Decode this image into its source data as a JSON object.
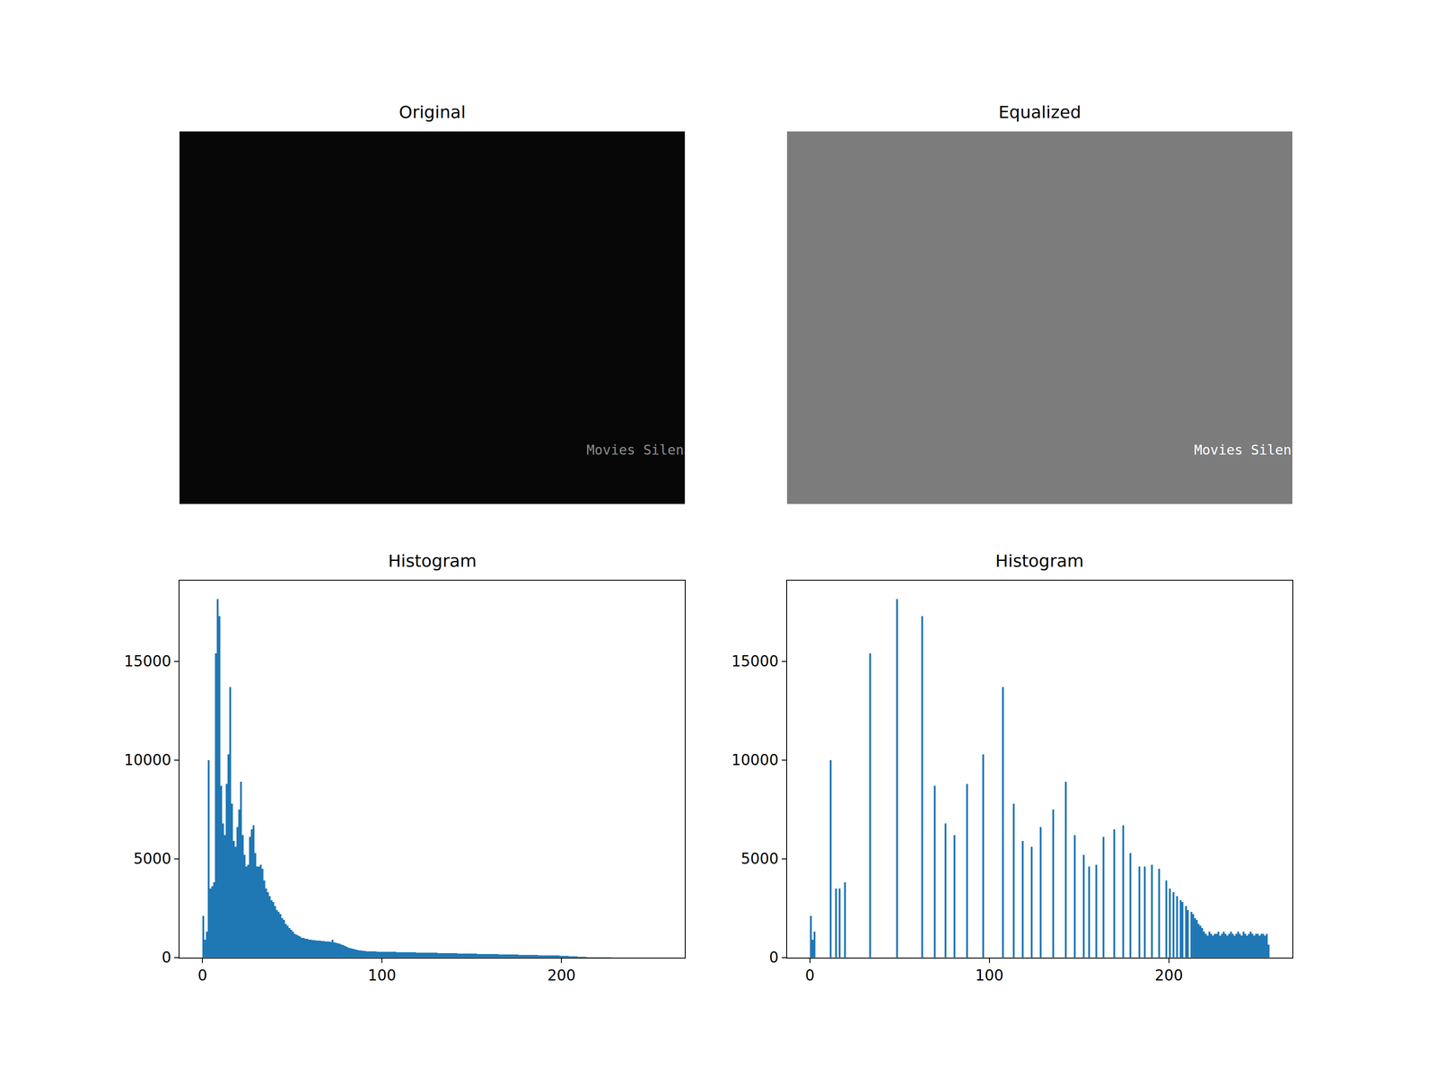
{
  "chart_data": [
    {
      "type": "image",
      "title": "Original",
      "color": "#070707",
      "annotations": [
        "Movies Silen"
      ],
      "tick_labels": false
    },
    {
      "type": "image",
      "title": "Equalized",
      "color": "#7c7c7c",
      "annotations": [
        "Movies Silen"
      ],
      "tick_labels": false
    },
    {
      "type": "histogram",
      "title": "Histogram",
      "color": "#1f77b4",
      "xlim": [
        -12.8,
        268.8
      ],
      "ylim": [
        0,
        19100
      ],
      "xticks": [
        0,
        100,
        200
      ],
      "yticks": [
        0,
        5000,
        10000,
        15000
      ],
      "bins": [
        0,
        1,
        2,
        3,
        4,
        5,
        6,
        7,
        8,
        9,
        10,
        11,
        12,
        13,
        14,
        15,
        16,
        17,
        18,
        19,
        20,
        21,
        22,
        23,
        24,
        25,
        26,
        27,
        28,
        29,
        30,
        31,
        32,
        33,
        34,
        35,
        36,
        37,
        38,
        39,
        40,
        41,
        42,
        43,
        44,
        45,
        46,
        47,
        48,
        49,
        50,
        51,
        52,
        53,
        54,
        55,
        56,
        57,
        58,
        59,
        60,
        61,
        62,
        63,
        64,
        65,
        66,
        67,
        68,
        69,
        70,
        71,
        72,
        73,
        74,
        75,
        76,
        77,
        78,
        79,
        80,
        81,
        82,
        83,
        84,
        85,
        86,
        87,
        88,
        89,
        90,
        91,
        92,
        93,
        94,
        95,
        96,
        97,
        98,
        99,
        100,
        101,
        102,
        103,
        104,
        105,
        106,
        107,
        108,
        109,
        110,
        111,
        112,
        113,
        114,
        115,
        116,
        117,
        118,
        119,
        120,
        121,
        122,
        123,
        124,
        125,
        126,
        127,
        128,
        129,
        130,
        131,
        132,
        133,
        134,
        135,
        136,
        137,
        138,
        139,
        140,
        141,
        142,
        143,
        144,
        145,
        146,
        147,
        148,
        149,
        150,
        151,
        152,
        153,
        154,
        155,
        156,
        157,
        158,
        159,
        160,
        161,
        162,
        163,
        164,
        165,
        166,
        167,
        168,
        169,
        170,
        171,
        172,
        173,
        174,
        175,
        176,
        177,
        178,
        179,
        180,
        181,
        182,
        183,
        184,
        185,
        186,
        187,
        188,
        189,
        190,
        191,
        192,
        193,
        194,
        195,
        196,
        197,
        198,
        199,
        200,
        201,
        202,
        203,
        204,
        205,
        206,
        207,
        208,
        209,
        210,
        211,
        212,
        213,
        214,
        215,
        216,
        217,
        218,
        219,
        220,
        221,
        222,
        223,
        224,
        225,
        226,
        227,
        228,
        229,
        230,
        231,
        232,
        233,
        234,
        235,
        236,
        237,
        238,
        239,
        240,
        241,
        242,
        243,
        244,
        245,
        246,
        247,
        248,
        249,
        250,
        251,
        252,
        253,
        254,
        255,
        256
      ],
      "counts": [
        2100,
        900,
        1300,
        10000,
        3500,
        3600,
        3800,
        15400,
        18150,
        17300,
        8700,
        6800,
        6200,
        8800,
        10300,
        13700,
        7800,
        5900,
        5600,
        6600,
        7500,
        8900,
        6200,
        5200,
        4600,
        4700,
        6100,
        6500,
        6700,
        5300,
        4600,
        4600,
        4700,
        4500,
        3900,
        3500,
        3300,
        3100,
        2900,
        2800,
        2600,
        2400,
        2300,
        2200,
        2000,
        1900,
        1700,
        1600,
        1500,
        1400,
        1300,
        1200,
        1150,
        1100,
        1050,
        1000,
        1000,
        950,
        950,
        900,
        900,
        880,
        870,
        860,
        850,
        850,
        840,
        830,
        820,
        810,
        800,
        780,
        900,
        760,
        740,
        720,
        700,
        660,
        620,
        580,
        540,
        500,
        470,
        440,
        420,
        400,
        380,
        360,
        350,
        340,
        330,
        320,
        315,
        310,
        305,
        300,
        300,
        295,
        295,
        290,
        290,
        288,
        286,
        284,
        282,
        280,
        278,
        276,
        274,
        272,
        270,
        268,
        266,
        264,
        262,
        260,
        258,
        256,
        254,
        252,
        250,
        248,
        246,
        244,
        242,
        240,
        238,
        236,
        234,
        232,
        230,
        228,
        226,
        224,
        222,
        220,
        218,
        216,
        214,
        212,
        210,
        208,
        206,
        204,
        202,
        200,
        198,
        196,
        194,
        192,
        190,
        188,
        186,
        184,
        182,
        180,
        178,
        176,
        174,
        172,
        170,
        168,
        166,
        164,
        162,
        160,
        158,
        156,
        154,
        152,
        150,
        148,
        146,
        144,
        142,
        140,
        138,
        136,
        134,
        132,
        130,
        128,
        126,
        124,
        122,
        120,
        118,
        116,
        114,
        112,
        110,
        108,
        106,
        104,
        102,
        100,
        98,
        96,
        94,
        92,
        90,
        85,
        80,
        75,
        70,
        65,
        60,
        55,
        50,
        45,
        40,
        36,
        32,
        28,
        24,
        20,
        18,
        16,
        14,
        12,
        10,
        9,
        8,
        7,
        6,
        5,
        4,
        3,
        2,
        1,
        0,
        0,
        0,
        0,
        0,
        0,
        0,
        0,
        0,
        0,
        0,
        0,
        0,
        0,
        0,
        0,
        0,
        0,
        0,
        0,
        0,
        0,
        0,
        0,
        0,
        0
      ]
    },
    {
      "type": "histogram",
      "title": "Histogram",
      "color": "#1f77b4",
      "xlim": [
        -12.8,
        268.8
      ],
      "ylim": [
        0,
        19100
      ],
      "xticks": [
        0,
        100,
        200
      ],
      "yticks": [
        0,
        5000,
        10000,
        15000
      ],
      "bins": [
        0,
        1,
        2,
        3,
        4,
        5,
        6,
        7,
        8,
        9,
        10,
        11,
        12,
        13,
        14,
        15,
        16,
        17,
        18,
        19,
        20,
        21,
        22,
        23,
        24,
        25,
        26,
        27,
        28,
        29,
        30,
        31,
        32,
        33,
        34,
        35,
        36,
        37,
        38,
        39,
        40,
        41,
        42,
        43,
        44,
        45,
        46,
        47,
        48,
        49,
        50,
        51,
        52,
        53,
        54,
        55,
        56,
        57,
        58,
        59,
        60,
        61,
        62,
        63,
        64,
        65,
        66,
        67,
        68,
        69,
        70,
        71,
        72,
        73,
        74,
        75,
        76,
        77,
        78,
        79,
        80,
        81,
        82,
        83,
        84,
        85,
        86,
        87,
        88,
        89,
        90,
        91,
        92,
        93,
        94,
        95,
        96,
        97,
        98,
        99,
        100,
        101,
        102,
        103,
        104,
        105,
        106,
        107,
        108,
        109,
        110,
        111,
        112,
        113,
        114,
        115,
        116,
        117,
        118,
        119,
        120,
        121,
        122,
        123,
        124,
        125,
        126,
        127,
        128,
        129,
        130,
        131,
        132,
        133,
        134,
        135,
        136,
        137,
        138,
        139,
        140,
        141,
        142,
        143,
        144,
        145,
        146,
        147,
        148,
        149,
        150,
        151,
        152,
        153,
        154,
        155,
        156,
        157,
        158,
        159,
        160,
        161,
        162,
        163,
        164,
        165,
        166,
        167,
        168,
        169,
        170,
        171,
        172,
        173,
        174,
        175,
        176,
        177,
        178,
        179,
        180,
        181,
        182,
        183,
        184,
        185,
        186,
        187,
        188,
        189,
        190,
        191,
        192,
        193,
        194,
        195,
        196,
        197,
        198,
        199,
        200,
        201,
        202,
        203,
        204,
        205,
        206,
        207,
        208,
        209,
        210,
        211,
        212,
        213,
        214,
        215,
        216,
        217,
        218,
        219,
        220,
        221,
        222,
        223,
        224,
        225,
        226,
        227,
        228,
        229,
        230,
        231,
        232,
        233,
        234,
        235,
        236,
        237,
        238,
        239,
        240,
        241,
        242,
        243,
        244,
        245,
        246,
        247,
        248,
        249,
        250,
        251,
        252,
        253,
        254,
        255,
        256
      ],
      "counts": [
        2100,
        900,
        1300,
        0,
        0,
        0,
        0,
        0,
        0,
        0,
        0,
        10000,
        0,
        0,
        3500,
        0,
        3500,
        0,
        0,
        3800,
        0,
        0,
        0,
        0,
        0,
        0,
        0,
        0,
        0,
        0,
        0,
        0,
        0,
        15400,
        0,
        0,
        0,
        0,
        0,
        0,
        0,
        0,
        0,
        0,
        0,
        0,
        0,
        0,
        18150,
        0,
        0,
        0,
        0,
        0,
        0,
        0,
        0,
        0,
        0,
        0,
        0,
        0,
        17300,
        0,
        0,
        0,
        0,
        0,
        0,
        8700,
        0,
        0,
        0,
        0,
        0,
        6800,
        0,
        0,
        0,
        0,
        6200,
        0,
        0,
        0,
        0,
        0,
        0,
        8800,
        0,
        0,
        0,
        0,
        0,
        0,
        0,
        0,
        10300,
        0,
        0,
        0,
        0,
        0,
        0,
        0,
        0,
        0,
        0,
        13700,
        0,
        0,
        0,
        0,
        0,
        7800,
        0,
        0,
        0,
        0,
        5900,
        0,
        0,
        0,
        0,
        5600,
        0,
        0,
        0,
        0,
        6600,
        0,
        0,
        0,
        0,
        0,
        0,
        7500,
        0,
        0,
        0,
        0,
        0,
        0,
        8900,
        0,
        0,
        0,
        0,
        6200,
        0,
        0,
        0,
        0,
        5200,
        0,
        0,
        4600,
        0,
        0,
        0,
        4700,
        0,
        0,
        0,
        6100,
        0,
        0,
        0,
        0,
        0,
        6500,
        0,
        0,
        0,
        0,
        6700,
        0,
        0,
        0,
        5300,
        0,
        0,
        0,
        0,
        4600,
        0,
        0,
        4600,
        0,
        0,
        0,
        4700,
        0,
        0,
        0,
        4500,
        0,
        0,
        0,
        3900,
        0,
        3500,
        0,
        3300,
        0,
        3100,
        0,
        2900,
        2800,
        0,
        2600,
        2400,
        0,
        2300,
        2200,
        2000,
        1900,
        1700,
        1600,
        1500,
        1300,
        1200,
        1100,
        1300,
        1200,
        1100,
        1200,
        1200,
        1300,
        1100,
        1200,
        1300,
        1200,
        1100,
        1200,
        1300,
        1200,
        1100,
        1200,
        1300,
        1200,
        1100,
        1300,
        1200,
        1100,
        1200,
        1300,
        1200,
        1100,
        1200,
        1200,
        1100,
        1200,
        1200,
        1100,
        1200,
        650
      ]
    }
  ]
}
